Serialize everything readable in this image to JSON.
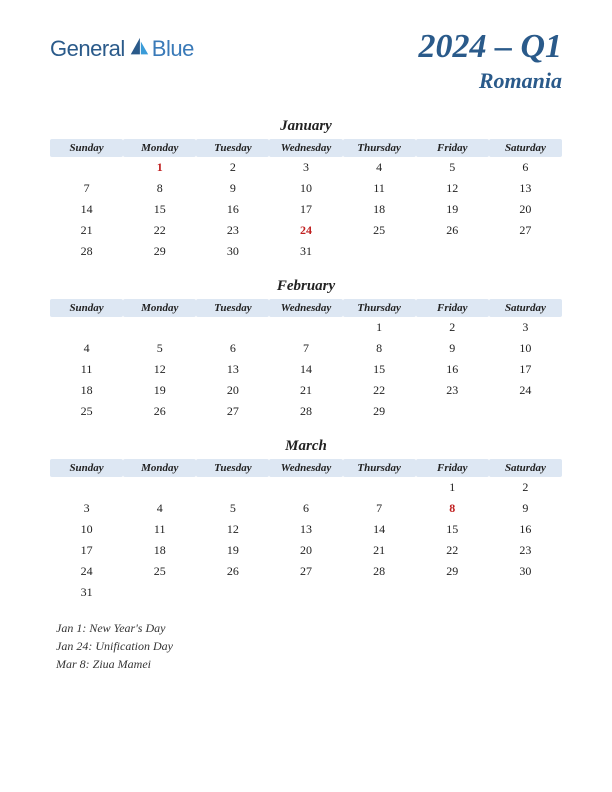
{
  "logo": {
    "general": "General",
    "blue": "Blue"
  },
  "title": {
    "year_quarter": "2024 – Q1",
    "country": "Romania"
  },
  "weekdays": [
    "Sunday",
    "Monday",
    "Tuesday",
    "Wednesday",
    "Thursday",
    "Friday",
    "Saturday"
  ],
  "colors": {
    "header_bg": "#dde7f3",
    "text": "#222222",
    "title": "#2a5a8a",
    "holiday": "#c02020",
    "logo_general": "#2a5a8a",
    "logo_blue": "#3a7ab8"
  },
  "months": [
    {
      "name": "January",
      "weeks": [
        [
          "",
          "1",
          "2",
          "3",
          "4",
          "5",
          "6"
        ],
        [
          "7",
          "8",
          "9",
          "10",
          "11",
          "12",
          "13"
        ],
        [
          "14",
          "15",
          "16",
          "17",
          "18",
          "19",
          "20"
        ],
        [
          "21",
          "22",
          "23",
          "24",
          "25",
          "26",
          "27"
        ],
        [
          "28",
          "29",
          "30",
          "31",
          "",
          "",
          ""
        ]
      ],
      "holidays": [
        "1",
        "24"
      ]
    },
    {
      "name": "February",
      "weeks": [
        [
          "",
          "",
          "",
          "",
          "1",
          "2",
          "3"
        ],
        [
          "4",
          "5",
          "6",
          "7",
          "8",
          "9",
          "10"
        ],
        [
          "11",
          "12",
          "13",
          "14",
          "15",
          "16",
          "17"
        ],
        [
          "18",
          "19",
          "20",
          "21",
          "22",
          "23",
          "24"
        ],
        [
          "25",
          "26",
          "27",
          "28",
          "29",
          "",
          ""
        ]
      ],
      "holidays": []
    },
    {
      "name": "March",
      "weeks": [
        [
          "",
          "",
          "",
          "",
          "",
          "1",
          "2"
        ],
        [
          "3",
          "4",
          "5",
          "6",
          "7",
          "8",
          "9"
        ],
        [
          "10",
          "11",
          "12",
          "13",
          "14",
          "15",
          "16"
        ],
        [
          "17",
          "18",
          "19",
          "20",
          "21",
          "22",
          "23"
        ],
        [
          "24",
          "25",
          "26",
          "27",
          "28",
          "29",
          "30"
        ],
        [
          "31",
          "",
          "",
          "",
          "",
          "",
          ""
        ]
      ],
      "holidays": [
        "8"
      ]
    }
  ],
  "holiday_list": [
    "Jan 1: New Year's Day",
    "Jan 24: Unification Day",
    "Mar 8: Ziua Mamei"
  ]
}
